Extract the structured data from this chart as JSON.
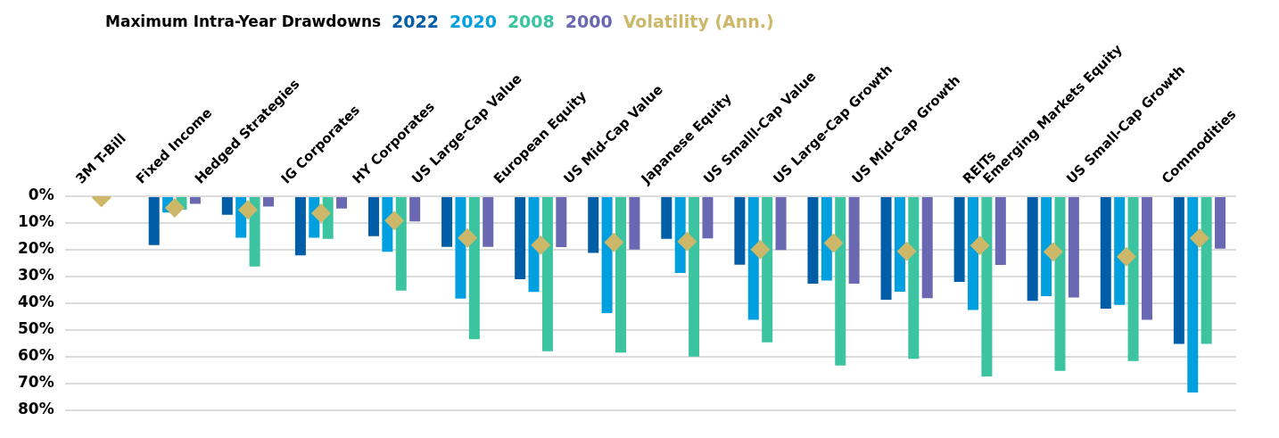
{
  "chart_data": {
    "type": "bar",
    "legend_title": "Maximum Intra-Year Drawdowns",
    "legend": "top",
    "categories": [
      "3M T-Bill",
      "Fixed Income",
      "Hedged Strategies",
      "IG Corporates",
      "HY Corporates",
      "US Large-Cap Value",
      "European Equity",
      "US Mid-Cap Value",
      "Japanese Equity",
      "US Smalll-Cap Value",
      "US Large-Cap Growth",
      "US Mid-Cap Growth",
      "REITs",
      "Emerging Markets Equity",
      "US Small-Cap Growth",
      "Commodities"
    ],
    "series": [
      {
        "name": "2022",
        "color": "#005ea8",
        "values": [
          null,
          18.3,
          6.9,
          22.1,
          14.9,
          18.9,
          31,
          21.2,
          15.9,
          25.6,
          32.7,
          38.7,
          32,
          39.1,
          42,
          55.2
        ]
      },
      {
        "name": "2020",
        "color": "#00a0e0",
        "values": [
          null,
          6.1,
          15.5,
          15.5,
          20.8,
          38.3,
          35.8,
          43.7,
          28.7,
          46.2,
          31.5,
          35.7,
          42.5,
          37.4,
          40.6,
          73.4
        ]
      },
      {
        "name": "2008",
        "color": "#3cc3a0",
        "values": [
          null,
          5,
          26.3,
          15.9,
          35.3,
          53.5,
          58,
          58.5,
          60,
          54.6,
          63.3,
          60.8,
          67.4,
          65.3,
          61.6,
          55.2
        ]
      },
      {
        "name": "2000",
        "color": "#6a68b2",
        "values": [
          null,
          2.8,
          3.8,
          4.6,
          9.4,
          18.9,
          19,
          19.9,
          15.8,
          20.1,
          32.7,
          38.1,
          25.7,
          37.9,
          46.2,
          19.6
        ]
      },
      {
        "name": "Volatility (Ann.)",
        "type": "scatter",
        "marker": "diamond",
        "color": "#cdb86a",
        "values": [
          0.5,
          4.3,
          5.1,
          6.3,
          9.1,
          15.6,
          18.3,
          17.3,
          16.9,
          19.9,
          17.5,
          20.6,
          18.4,
          20.8,
          22.6,
          15.7
        ]
      }
    ],
    "ylim": [
      80,
      0
    ],
    "yticks": [
      {
        "value": 0,
        "label": "0%"
      },
      {
        "value": 10,
        "label": "10%"
      },
      {
        "value": 20,
        "label": "20%"
      },
      {
        "value": 30,
        "label": "30%"
      },
      {
        "value": 40,
        "label": "40%"
      },
      {
        "value": 50,
        "label": "50%"
      },
      {
        "value": 60,
        "label": "60%"
      },
      {
        "value": 70,
        "label": "70%"
      },
      {
        "value": 80,
        "label": "80%"
      }
    ],
    "grid": "y"
  }
}
